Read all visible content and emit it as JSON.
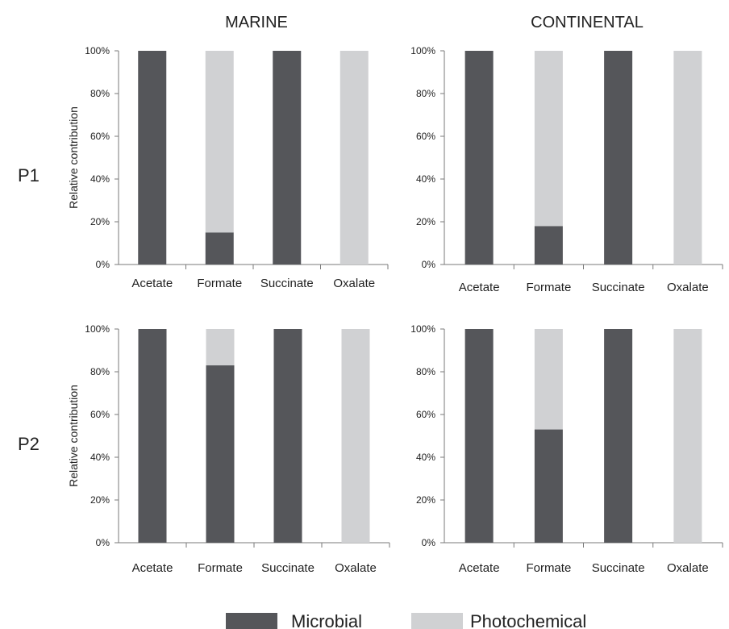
{
  "colors": {
    "microbial": "#55565a",
    "photochemical": "#d0d1d3",
    "axis": "#7a7a7a"
  },
  "column_titles": [
    "MARINE",
    "CONTINENTAL"
  ],
  "row_labels": [
    "P1",
    "P2"
  ],
  "ylabel": "Relative contribution",
  "yticks": [
    "0%",
    "20%",
    "40%",
    "60%",
    "80%",
    "100%"
  ],
  "legend": {
    "microbial": "Microbial",
    "photochemical": "Photochemical",
    "placement": "bottom-center"
  },
  "chart_data": [
    {
      "type": "bar",
      "stacked": true,
      "row": "P1",
      "column": "MARINE",
      "categories": [
        "Acetate",
        "Formate",
        "Succinate",
        "Oxalate"
      ],
      "series": [
        {
          "name": "Microbial",
          "values": [
            100,
            15,
            100,
            0
          ]
        },
        {
          "name": "Photochemical",
          "values": [
            0,
            85,
            0,
            100
          ]
        }
      ],
      "ylabel": "Relative contribution",
      "ylim": [
        0,
        100
      ]
    },
    {
      "type": "bar",
      "stacked": true,
      "row": "P1",
      "column": "CONTINENTAL",
      "categories": [
        "Acetate",
        "Formate",
        "Succinate",
        "Oxalate"
      ],
      "series": [
        {
          "name": "Microbial",
          "values": [
            100,
            18,
            100,
            0
          ]
        },
        {
          "name": "Photochemical",
          "values": [
            0,
            82,
            0,
            100
          ]
        }
      ],
      "ylabel": "",
      "ylim": [
        0,
        100
      ]
    },
    {
      "type": "bar",
      "stacked": true,
      "row": "P2",
      "column": "MARINE",
      "categories": [
        "Acetate",
        "Formate",
        "Succinate",
        "Oxalate"
      ],
      "series": [
        {
          "name": "Microbial",
          "values": [
            100,
            83,
            100,
            0
          ]
        },
        {
          "name": "Photochemical",
          "values": [
            0,
            17,
            0,
            100
          ]
        }
      ],
      "ylabel": "Relative contribution",
      "ylim": [
        0,
        100
      ]
    },
    {
      "type": "bar",
      "stacked": true,
      "row": "P2",
      "column": "CONTINENTAL",
      "categories": [
        "Acetate",
        "Formate",
        "Succinate",
        "Oxalate"
      ],
      "series": [
        {
          "name": "Microbial",
          "values": [
            100,
            53,
            100,
            0
          ]
        },
        {
          "name": "Photochemical",
          "values": [
            0,
            47,
            0,
            100
          ]
        }
      ],
      "ylabel": "",
      "ylim": [
        0,
        100
      ]
    }
  ]
}
